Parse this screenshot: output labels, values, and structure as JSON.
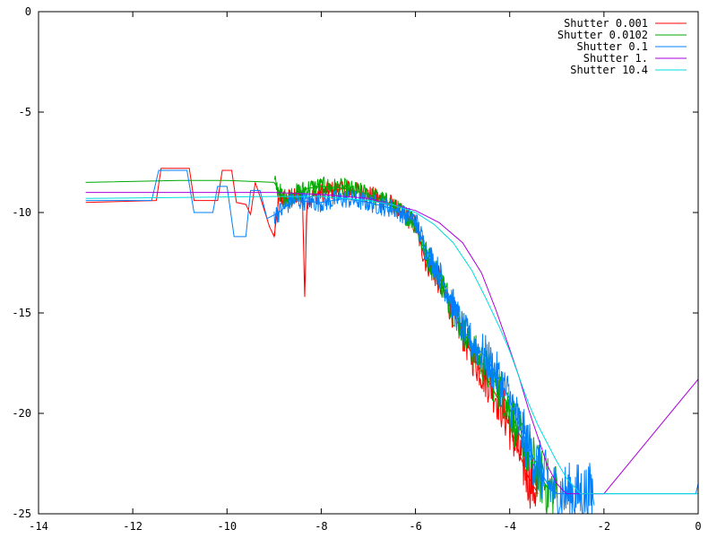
{
  "chart_data": {
    "type": "line",
    "title": "",
    "xlabel": "",
    "ylabel": "",
    "xlim": [
      -14,
      0
    ],
    "ylim": [
      -25,
      0
    ],
    "x_ticks": [
      -14,
      -12,
      -10,
      -8,
      -6,
      -4,
      -2,
      0
    ],
    "y_ticks": [
      0,
      -5,
      -10,
      -15,
      -20,
      -25
    ],
    "grid": false,
    "legend_position": "top-right",
    "series": [
      {
        "name": "Shutter 0.001",
        "color": "#ff0000",
        "style": "noisy",
        "points": [
          [
            -13,
            -9.5
          ],
          [
            -11.5,
            -9.4
          ],
          [
            -11.4,
            -7.8
          ],
          [
            -10.8,
            -7.8
          ],
          [
            -10.7,
            -9.4
          ],
          [
            -10.2,
            -9.4
          ],
          [
            -10.1,
            -7.9
          ],
          [
            -9.9,
            -7.9
          ],
          [
            -9.8,
            -9.5
          ],
          [
            -9.6,
            -9.6
          ],
          [
            -9.5,
            -10.1
          ],
          [
            -9.4,
            -8.5
          ],
          [
            -9.3,
            -9.2
          ],
          [
            -9.1,
            -10.7
          ],
          [
            -9.0,
            -11.2
          ],
          [
            -8.9,
            -9.3
          ],
          [
            -8.6,
            -9.3
          ],
          [
            -8.4,
            -9.1
          ],
          [
            -8.35,
            -14.2
          ],
          [
            -8.3,
            -9.3
          ],
          [
            -8.0,
            -9.0
          ],
          [
            -7.5,
            -8.8
          ],
          [
            -7.0,
            -9.1
          ],
          [
            -6.5,
            -9.6
          ],
          [
            -6.0,
            -10.6
          ],
          [
            -5.8,
            -12.3
          ],
          [
            -5.5,
            -13.4
          ],
          [
            -5.2,
            -15.0
          ],
          [
            -5.0,
            -16.0
          ],
          [
            -4.8,
            -17.1
          ],
          [
            -4.6,
            -17.9
          ],
          [
            -4.4,
            -18.6
          ],
          [
            -4.2,
            -19.5
          ],
          [
            -4.0,
            -20.6
          ],
          [
            -3.8,
            -22.0
          ],
          [
            -3.6,
            -23.2
          ],
          [
            -3.4,
            -24.0
          ]
        ]
      },
      {
        "name": "Shutter 0.0102",
        "color": "#00aa00",
        "style": "noisy",
        "points": [
          [
            -13,
            -8.5
          ],
          [
            -11,
            -8.4
          ],
          [
            -10,
            -8.4
          ],
          [
            -9.0,
            -8.5
          ],
          [
            -8.8,
            -9.3
          ],
          [
            -8.3,
            -8.8
          ],
          [
            -8.0,
            -8.7
          ],
          [
            -7.5,
            -8.8
          ],
          [
            -7.0,
            -9.1
          ],
          [
            -6.5,
            -9.6
          ],
          [
            -6.0,
            -10.5
          ],
          [
            -5.8,
            -12.0
          ],
          [
            -5.5,
            -13.2
          ],
          [
            -5.2,
            -14.8
          ],
          [
            -5.0,
            -15.8
          ],
          [
            -4.8,
            -16.8
          ],
          [
            -4.5,
            -17.8
          ],
          [
            -4.2,
            -18.8
          ],
          [
            -4.0,
            -19.8
          ],
          [
            -3.8,
            -21.0
          ],
          [
            -3.5,
            -22.5
          ],
          [
            -3.2,
            -23.7
          ],
          [
            -3.0,
            -24.0
          ]
        ]
      },
      {
        "name": "Shutter 0.1",
        "color": "#0080ff",
        "style": "noisy",
        "points": [
          [
            -13,
            -9.4
          ],
          [
            -11.6,
            -9.4
          ],
          [
            -11.45,
            -7.9
          ],
          [
            -10.85,
            -7.9
          ],
          [
            -10.7,
            -10.0
          ],
          [
            -10.3,
            -10.0
          ],
          [
            -10.2,
            -8.7
          ],
          [
            -10.0,
            -8.7
          ],
          [
            -9.85,
            -11.2
          ],
          [
            -9.6,
            -11.2
          ],
          [
            -9.5,
            -8.9
          ],
          [
            -9.3,
            -8.9
          ],
          [
            -9.15,
            -10.3
          ],
          [
            -8.9,
            -10.0
          ],
          [
            -8.6,
            -9.4
          ],
          [
            -8.0,
            -9.5
          ],
          [
            -7.5,
            -9.3
          ],
          [
            -7.0,
            -9.5
          ],
          [
            -6.5,
            -9.8
          ],
          [
            -6.0,
            -10.4
          ],
          [
            -5.8,
            -11.7
          ],
          [
            -5.5,
            -13.0
          ],
          [
            -5.2,
            -14.6
          ],
          [
            -5.0,
            -15.8
          ],
          [
            -4.8,
            -16.5
          ],
          [
            -4.5,
            -17.2
          ],
          [
            -4.2,
            -18.4
          ],
          [
            -4.0,
            -19.3
          ],
          [
            -3.8,
            -20.6
          ],
          [
            -3.5,
            -22.2
          ],
          [
            -3.2,
            -23.5
          ],
          [
            -3.0,
            -24.0
          ],
          [
            -0.05,
            -24.0
          ],
          [
            0,
            -23.5
          ]
        ]
      },
      {
        "name": "Shutter 1.",
        "color": "#aa00dd",
        "style": "smooth",
        "points": [
          [
            -13,
            -9.0
          ],
          [
            -11,
            -9.0
          ],
          [
            -9.0,
            -9.0
          ],
          [
            -8.0,
            -9.1
          ],
          [
            -7.0,
            -9.3
          ],
          [
            -6.0,
            -9.9
          ],
          [
            -5.5,
            -10.5
          ],
          [
            -5.0,
            -11.5
          ],
          [
            -4.6,
            -13.0
          ],
          [
            -4.3,
            -14.8
          ],
          [
            -4.0,
            -16.8
          ],
          [
            -3.8,
            -18.2
          ],
          [
            -3.6,
            -19.8
          ],
          [
            -3.4,
            -21.2
          ],
          [
            -3.2,
            -22.6
          ],
          [
            -3.0,
            -23.5
          ],
          [
            -2.8,
            -24.0
          ],
          [
            -2.0,
            -24.0
          ],
          [
            0,
            -18.3
          ]
        ]
      },
      {
        "name": "Shutter 10.4",
        "color": "#00dddd",
        "style": "smooth",
        "points": [
          [
            -13,
            -9.3
          ],
          [
            -11,
            -9.25
          ],
          [
            -9.0,
            -9.2
          ],
          [
            -8.0,
            -9.2
          ],
          [
            -7.0,
            -9.4
          ],
          [
            -6.5,
            -9.6
          ],
          [
            -6.0,
            -10.0
          ],
          [
            -5.6,
            -10.6
          ],
          [
            -5.2,
            -11.5
          ],
          [
            -4.8,
            -12.9
          ],
          [
            -4.5,
            -14.3
          ],
          [
            -4.2,
            -15.8
          ],
          [
            -4.0,
            -16.9
          ],
          [
            -3.8,
            -18.2
          ],
          [
            -3.6,
            -19.5
          ],
          [
            -3.4,
            -20.6
          ],
          [
            -3.2,
            -21.5
          ],
          [
            -3.0,
            -22.4
          ],
          [
            -2.8,
            -23.2
          ],
          [
            -2.5,
            -24.0
          ],
          [
            0,
            -24.0
          ]
        ]
      }
    ]
  }
}
